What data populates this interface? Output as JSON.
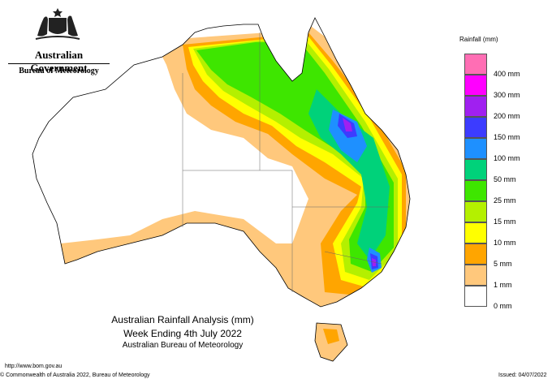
{
  "header": {
    "government": "Australian Government",
    "bureau": "Bureau of Meteorology"
  },
  "map": {
    "title": "Australian Rainfall Analysis (mm)",
    "period": "Week Ending 4th July 2022",
    "source": "Australian Bureau of Meteorology"
  },
  "legend": {
    "title": "Rainfall (mm)",
    "items": [
      {
        "label": "400 mm",
        "color": "#ff6eb4"
      },
      {
        "label": "300 mm",
        "color": "#ff00ff"
      },
      {
        "label": "200 mm",
        "color": "#a020f0"
      },
      {
        "label": "150 mm",
        "color": "#3c3cff"
      },
      {
        "label": "100 mm",
        "color": "#1e90ff"
      },
      {
        "label": "50 mm",
        "color": "#00d27a"
      },
      {
        "label": "25 mm",
        "color": "#3ee600"
      },
      {
        "label": "15 mm",
        "color": "#b4f000"
      },
      {
        "label": "10 mm",
        "color": "#ffff00"
      },
      {
        "label": "5 mm",
        "color": "#ffa500"
      },
      {
        "label": "1 mm",
        "color": "#ffc87c"
      },
      {
        "label": "0 mm",
        "color": "#ffffff"
      }
    ]
  },
  "footer": {
    "url": "http://www.bom.gov.au",
    "copyright": "© Commonwealth of Australia 2022, Bureau of Meteorology",
    "issued": "Issued: 04/07/2022"
  }
}
